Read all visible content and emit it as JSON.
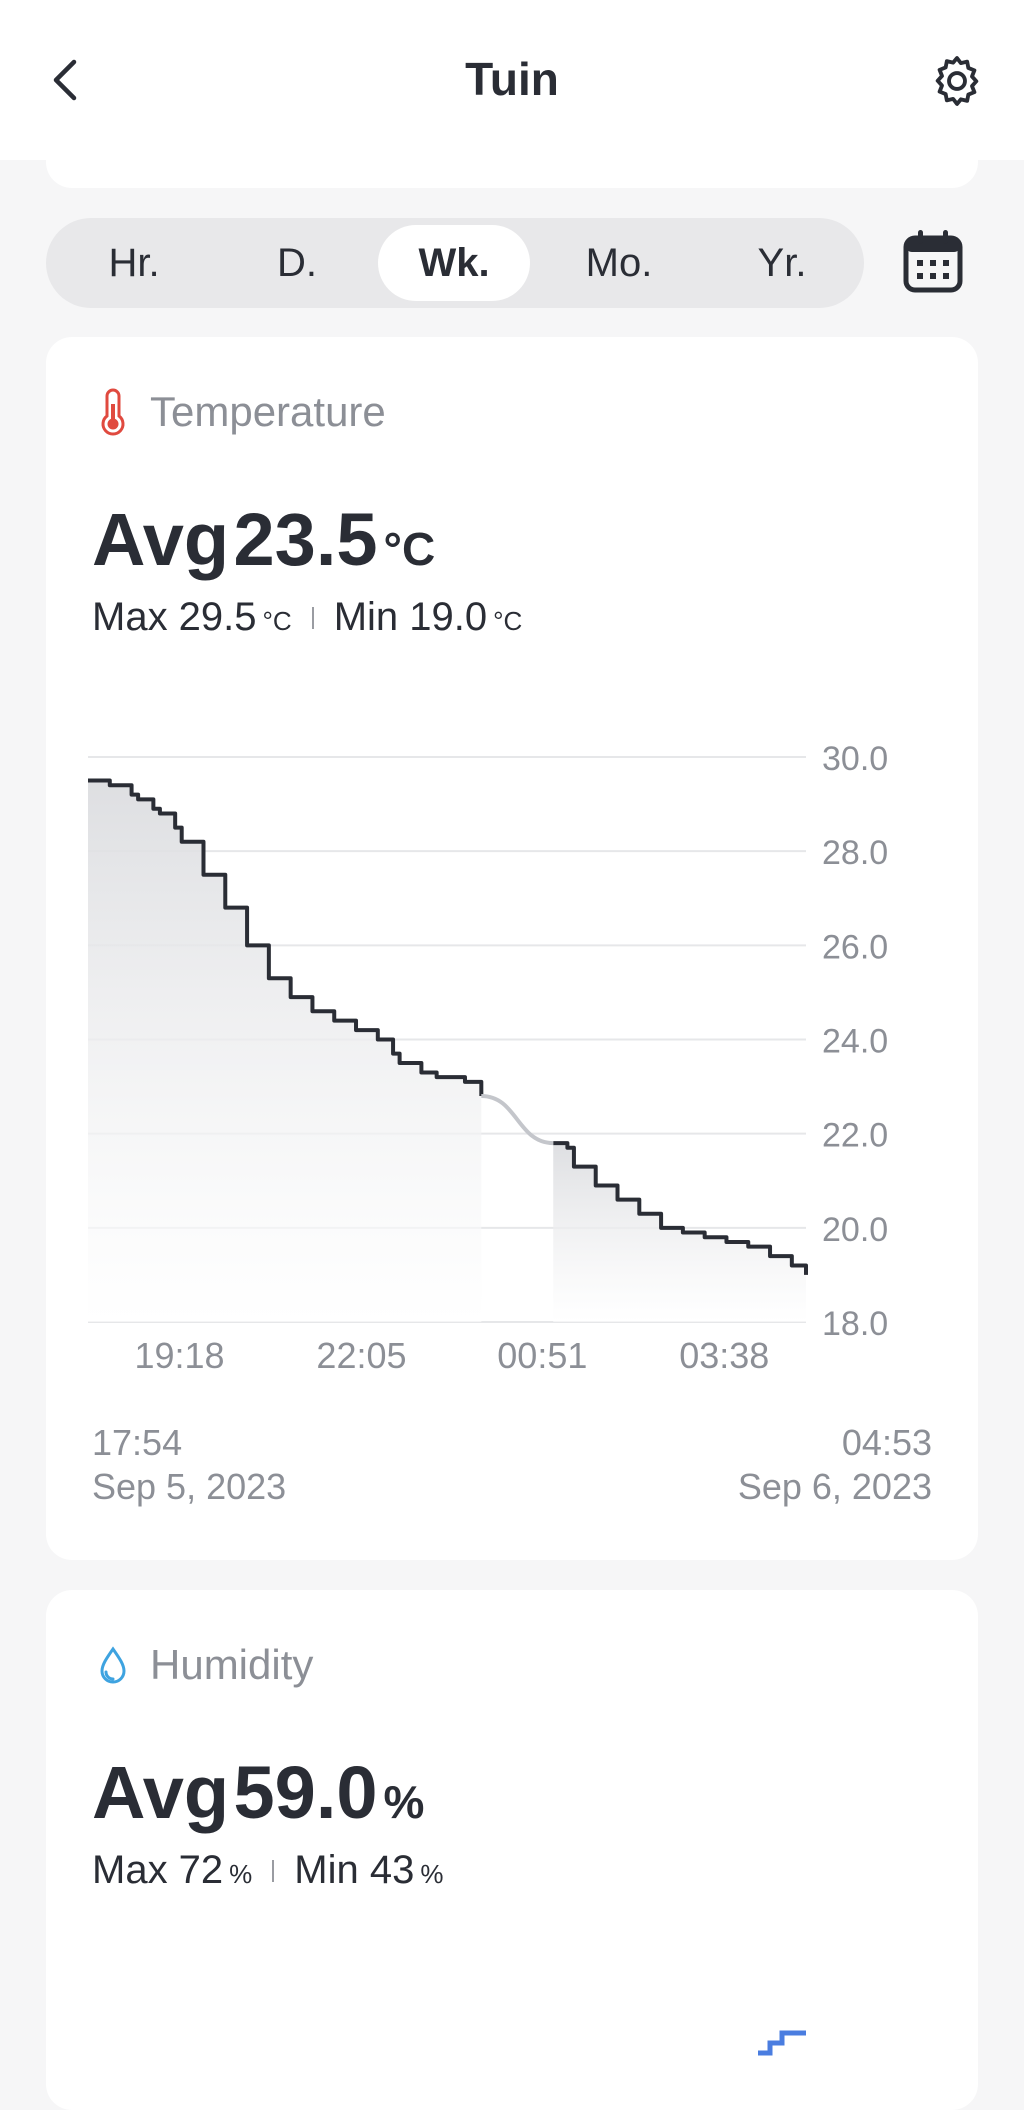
{
  "header": {
    "title": "Tuin",
    "back_icon": "chevron-left-icon",
    "settings_icon": "gear-icon"
  },
  "period_tabs": {
    "items": [
      {
        "label": "Hr.",
        "active": false
      },
      {
        "label": "D.",
        "active": false
      },
      {
        "label": "Wk.",
        "active": true
      },
      {
        "label": "Mo.",
        "active": false
      },
      {
        "label": "Yr.",
        "active": false
      }
    ],
    "calendar_icon": "calendar-icon"
  },
  "temperature": {
    "title": "Temperature",
    "icon": "thermometer-icon",
    "avg_prefix": "Avg",
    "avg_value": "23.5",
    "unit": "°C",
    "max_label": "Max 29.5",
    "min_label": "Min 19.0",
    "start_time": "17:54",
    "start_date": "Sep 5, 2023",
    "end_time": "04:53",
    "end_date": "Sep 6, 2023"
  },
  "humidity": {
    "title": "Humidity",
    "icon": "water-drop-icon",
    "avg_prefix": "Avg",
    "avg_value": "59.0",
    "unit": "%",
    "max_label": "Max 72",
    "min_label": "Min 43"
  },
  "colors": {
    "line": "#2a2d35",
    "gap_line": "#c4c6cb",
    "grid": "#e6e7e9",
    "thermometer": "#e04a3f",
    "drop": "#3ea3e0",
    "humidity_line": "#4a7de0"
  },
  "chart_data": {
    "type": "line",
    "title": "Temperature",
    "y_ticks": [
      "30.0",
      "28.0",
      "26.0",
      "24.0",
      "22.0",
      "20.0",
      "18.0"
    ],
    "ylim": [
      18.0,
      30.0
    ],
    "x_ticks": [
      "19:18",
      "22:05",
      "00:51",
      "03:38"
    ],
    "x_range": [
      "17:54",
      "04:53"
    ],
    "axis_position": "right",
    "grid": true,
    "gap": {
      "from": "23:56",
      "to": "01:00"
    },
    "series": [
      {
        "x": [
          "17:54",
          "18:00",
          "18:14",
          "18:20",
          "18:34",
          "18:40",
          "18:54",
          "19:00",
          "19:14",
          "19:20",
          "19:40",
          "20:00",
          "20:20",
          "20:40",
          "21:00",
          "21:20",
          "21:40",
          "22:00",
          "22:14",
          "22:20",
          "22:34",
          "22:40",
          "23:00",
          "23:14",
          "23:20",
          "23:40",
          "23:55",
          "01:01",
          "01:14",
          "01:20",
          "01:40",
          "02:00",
          "02:20",
          "02:40",
          "03:00",
          "03:20",
          "03:40",
          "04:00",
          "04:20",
          "04:40",
          "04:53"
        ],
        "values": [
          29.5,
          29.5,
          29.4,
          29.4,
          29.2,
          29.1,
          28.9,
          28.8,
          28.5,
          28.2,
          27.5,
          26.8,
          26.0,
          25.3,
          24.9,
          24.6,
          24.4,
          24.2,
          24.2,
          24.0,
          23.7,
          23.5,
          23.3,
          23.2,
          23.2,
          23.1,
          22.8,
          21.8,
          21.7,
          21.3,
          20.9,
          20.6,
          20.3,
          20.0,
          19.9,
          19.8,
          19.7,
          19.6,
          19.4,
          19.2,
          19.0
        ]
      }
    ]
  }
}
